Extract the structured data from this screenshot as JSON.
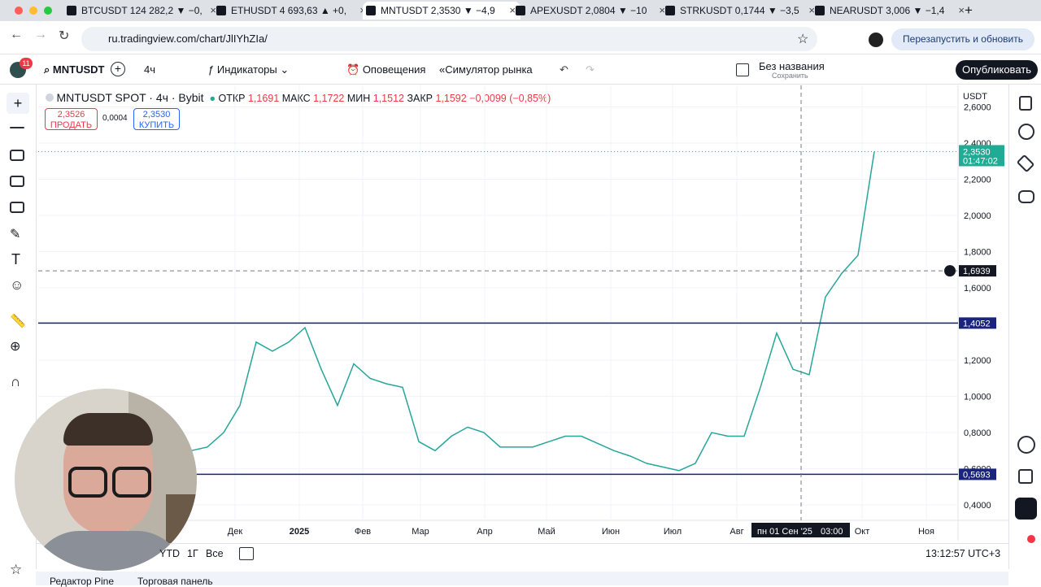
{
  "browser": {
    "tabs": [
      "BTCUSDT 124 282,2 ▼ −0,",
      "ETHUSDT 4 693,63 ▲ +0,",
      "MNTUSDT 2,3530 ▼ −4,9",
      "APEXUSDT 2,0804 ▼ −10",
      "STRKUSDT 0,1744 ▼ −3,5",
      "NEARUSDT 3,006 ▼ −1,4"
    ],
    "url": "ru.tradingview.com/chart/JlIYhZIa/",
    "update_button": "Перезапустить и обновить"
  },
  "toolbar": {
    "badge": "11",
    "symbol": "MNTUSDT",
    "interval": "4ч",
    "indicators": "Индикаторы",
    "alerts": "Оповещения",
    "replay": "Симулятор рынка",
    "layout_name": "Без названия",
    "save": "Сохранить",
    "publish": "Опубликовать"
  },
  "legend": {
    "title": "MNTUSDT SPOT · 4ч · Bybit",
    "open_label": "ОТКР",
    "open": "1,1691",
    "high_label": "МАКС",
    "high": "1,1722",
    "low_label": "МИН",
    "low": "1,1512",
    "close_label": "ЗАКР",
    "close": "1,1592",
    "change": "−0,0099 (−0,85%)"
  },
  "trade": {
    "sell_price": "2,3526",
    "sell": "ПРОДАТЬ",
    "spread": "0,0004",
    "buy_price": "2,3530",
    "buy": "КУПИТЬ"
  },
  "chart_data": {
    "type": "line",
    "currency": "USDT",
    "color": "#26a69a",
    "values": [
      0.7,
      0.72,
      0.8,
      0.95,
      1.3,
      1.25,
      1.3,
      1.38,
      1.15,
      0.95,
      1.18,
      1.1,
      1.07,
      1.05,
      0.75,
      0.7,
      0.78,
      0.83,
      0.8,
      0.72,
      0.72,
      0.72,
      0.75,
      0.78,
      0.78,
      0.74,
      0.7,
      0.67,
      0.63,
      0.61,
      0.59,
      0.63,
      0.8,
      0.78,
      0.78,
      1.05,
      1.35,
      1.15,
      1.12,
      1.55,
      1.68,
      1.78,
      2.353
    ],
    "ylim": [
      0.315,
      2.719
    ],
    "yticks": [
      {
        "value": 0.4,
        "label": "0,4000"
      },
      {
        "value": 0.6,
        "label": "0,6000"
      },
      {
        "value": 0.8,
        "label": "0,8000"
      },
      {
        "value": 1.0,
        "label": "1,0000"
      },
      {
        "value": 1.2,
        "label": "1,2000"
      },
      {
        "value": 1.4,
        "label": "1,4000"
      },
      {
        "value": 1.6,
        "label": "1,6000"
      },
      {
        "value": 1.8,
        "label": "1,8000"
      },
      {
        "value": 2.0,
        "label": "2,0000"
      },
      {
        "value": 2.2,
        "label": "2,2000"
      },
      {
        "value": 2.4,
        "label": "2,4000"
      },
      {
        "value": 2.6,
        "label": "2,6000"
      }
    ],
    "xticks": [
      "Дек",
      "2025",
      "Фев",
      "Мар",
      "Апр",
      "Май",
      "Июн",
      "Июл",
      "Авг",
      "Окт",
      "Ноя"
    ],
    "grid": true,
    "levels": [
      {
        "value": 1.4052,
        "label": "1,4052",
        "color": "#1a237e"
      },
      {
        "value": 0.5693,
        "label": "0,5693",
        "color": "#1a237e"
      }
    ],
    "crosshair": {
      "value": 1.6939,
      "label": "1,6939",
      "time": "пн 01 Сен '25",
      "hour": "03:00"
    },
    "last_price": {
      "value": 2.353,
      "label": "2,3530",
      "countdown": "01:47:02",
      "color": "#22ab94"
    }
  },
  "bottom": {
    "ranges": [
      "YTD",
      "1Г",
      "Все"
    ],
    "time": "13:12:57 UTC+3",
    "tabs": [
      "Редактор Pine",
      "Торговая панель"
    ]
  }
}
